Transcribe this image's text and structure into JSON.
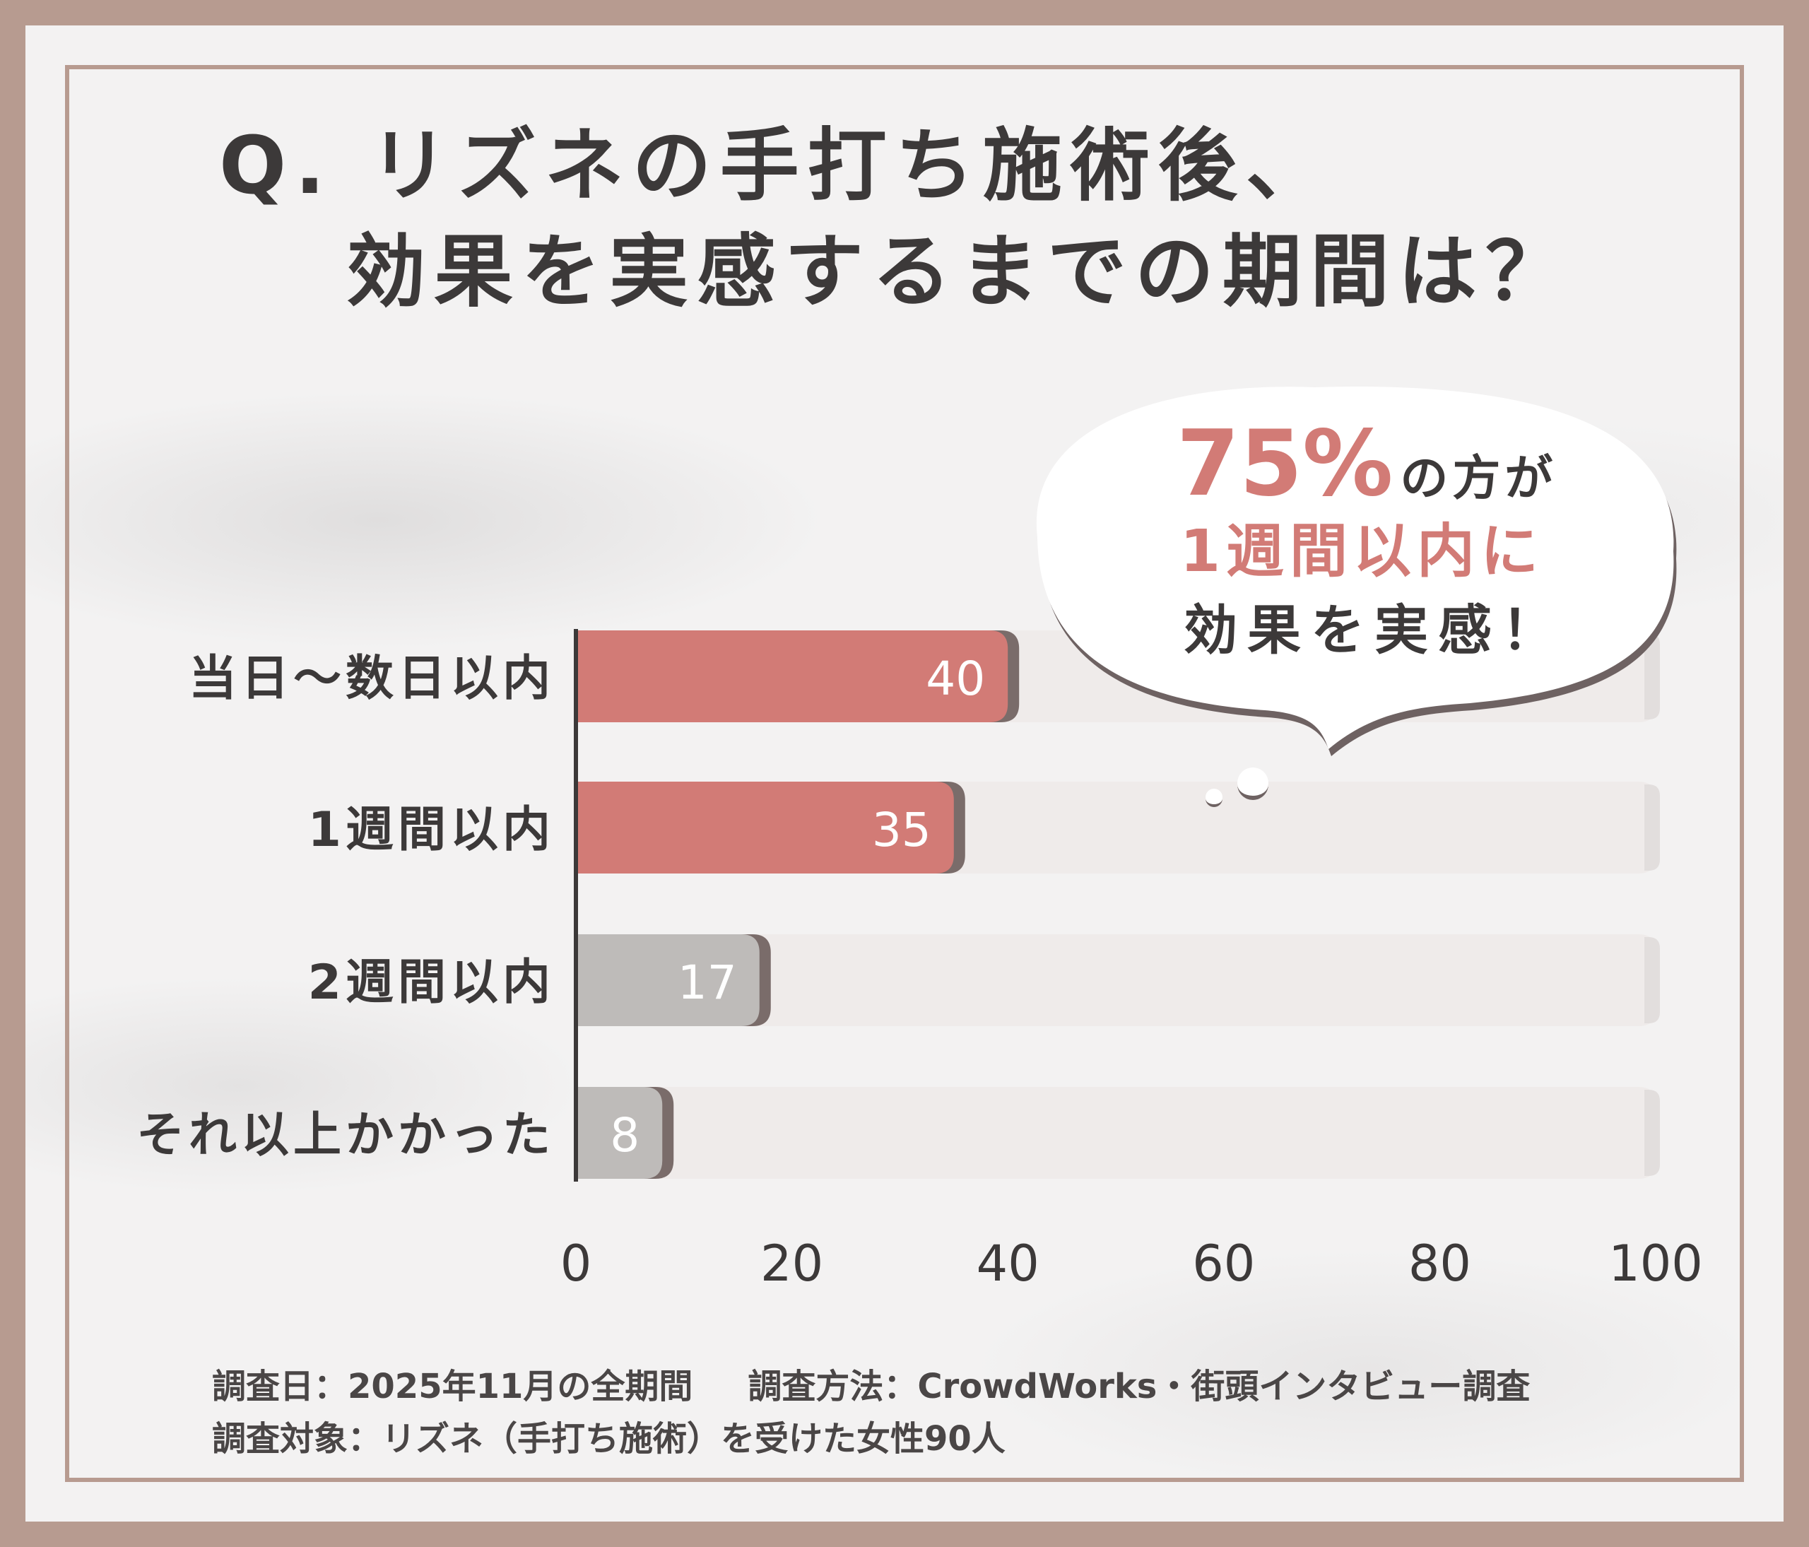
{
  "title": {
    "line1": "Q. リズネの手打ち施術後、",
    "line2": "効果を実感するまでの期間は？"
  },
  "callout": {
    "line1_highlight": "75%",
    "line1_rest": "の方が",
    "line2": "1週間以内に",
    "line3": "効果を実感！"
  },
  "chart_data": {
    "type": "bar",
    "orientation": "horizontal",
    "categories": [
      "当日～数日以内",
      "1週間以内",
      "2週間以内",
      "それ以上かかった"
    ],
    "values": [
      40,
      35,
      17,
      8
    ],
    "xlim": [
      0,
      100
    ],
    "xticks": [
      "0",
      "20",
      "40",
      "60",
      "80",
      "100"
    ],
    "bar_colors": [
      "#d27b76",
      "#d27b76",
      "#bebbb9",
      "#bebbb9"
    ],
    "track_color": "#efebea",
    "grid": false
  },
  "footer": {
    "date": "調査日：2025年11月の全期間",
    "method": "調査方法：CrowdWorks・街頭インタビュー調査",
    "target": "調査対象：リズネ（手打ち施術）を受けた女性90人"
  },
  "colors": {
    "frame": "#b79b90",
    "accent": "#d27b76",
    "text": "#3c3939"
  }
}
